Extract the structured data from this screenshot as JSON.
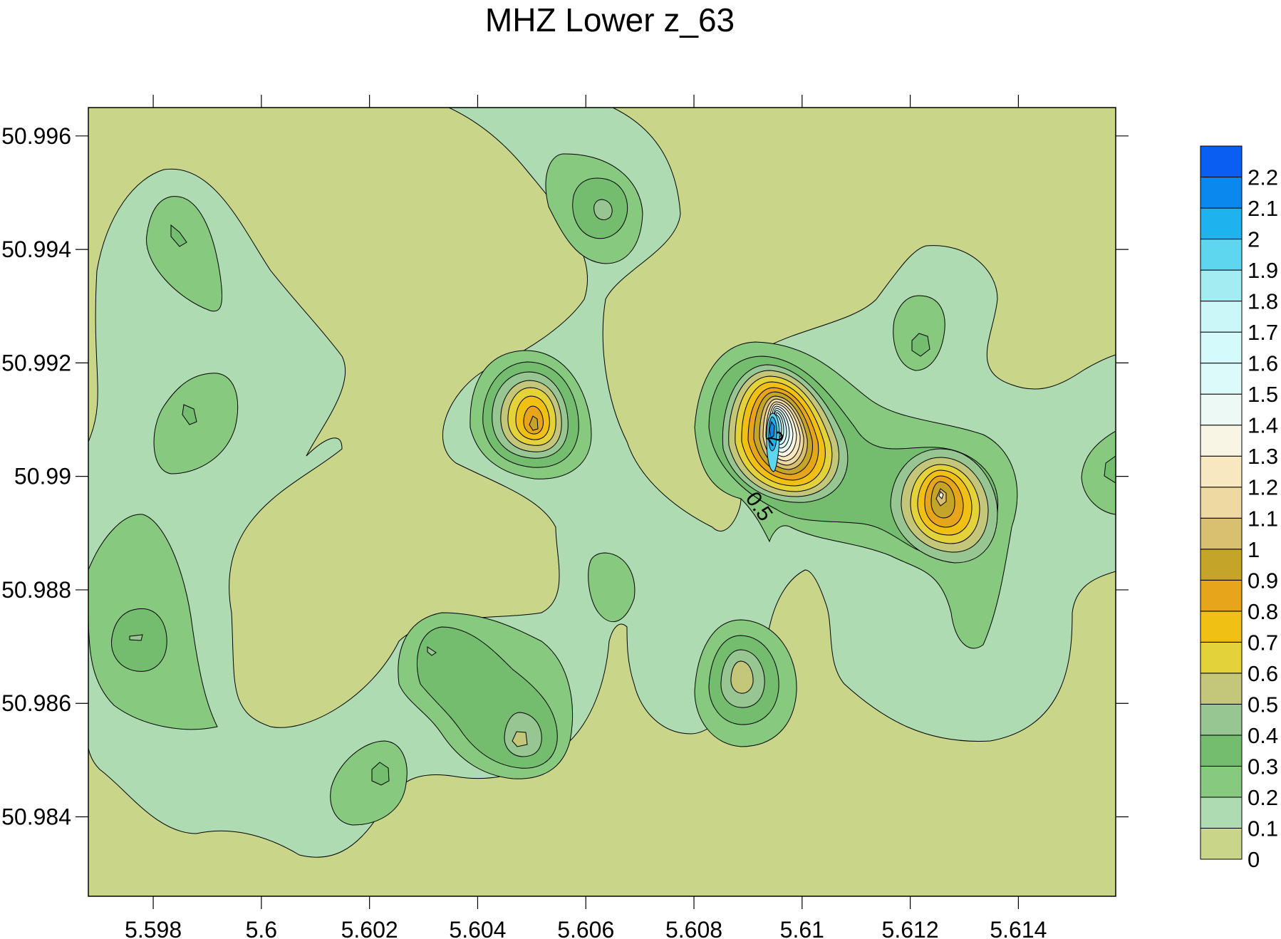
{
  "chart_data": {
    "type": "contour",
    "title": "MHZ Lower z_63",
    "xlabel": "",
    "ylabel": "",
    "xlim": [
      5.5968,
      5.6158
    ],
    "ylim": [
      50.9826,
      50.9965
    ],
    "x_ticks": [
      5.598,
      5.6,
      5.602,
      5.604,
      5.606,
      5.608,
      5.61,
      5.612,
      5.614
    ],
    "x_tick_labels": [
      "5.598",
      "5.6",
      "5.602",
      "5.604",
      "5.606",
      "5.608",
      "5.61",
      "5.612",
      "5.614"
    ],
    "y_ticks": [
      50.984,
      50.986,
      50.988,
      50.99,
      50.992,
      50.994,
      50.996
    ],
    "y_tick_labels": [
      "50.984",
      "50.986",
      "50.988",
      "50.99",
      "50.992",
      "50.994",
      "50.996"
    ],
    "colorbar": {
      "levels": [
        0,
        0.1,
        0.2,
        0.3,
        0.4,
        0.5,
        0.6,
        0.7,
        0.8,
        0.9,
        1,
        1.1,
        1.2,
        1.3,
        1.4,
        1.5,
        1.6,
        1.7,
        1.8,
        1.9,
        2,
        2.1,
        2.2
      ],
      "labels": [
        "0",
        "0.1",
        "0.2",
        "0.3",
        "0.4",
        "0.5",
        "0.6",
        "0.7",
        "0.8",
        "0.9",
        "1",
        "1.1",
        "1.2",
        "1.3",
        "1.4",
        "1.5",
        "1.6",
        "1.7",
        "1.8",
        "1.9",
        "2",
        "2.1",
        "2.2"
      ],
      "colors": [
        "#c9d68a",
        "#afdbb2",
        "#86c97f",
        "#74bd6e",
        "#97c693",
        "#c4c77a",
        "#e3d23a",
        "#f1c015",
        "#e6a51a",
        "#c4a528",
        "#d8c070",
        "#efd9a3",
        "#f8e8c0",
        "#f8f5e4",
        "#edf9f4",
        "#dcfaf8",
        "#d5fafb",
        "#cbf7f9",
        "#a3ecf2",
        "#5fd6f0",
        "#1eb3ee",
        "#0b88ee",
        "#0a5ff2"
      ]
    },
    "contour_labels": [
      {
        "text": "2",
        "x": 5.6094,
        "y": 50.9906
      },
      {
        "text": "0.5",
        "x": 5.6091,
        "y": 50.9894
      }
    ],
    "peaks": [
      {
        "x": 5.5985,
        "y": 50.9943,
        "value": 0.4
      },
      {
        "x": 5.5988,
        "y": 50.991,
        "value": 0.3
      },
      {
        "x": 5.5978,
        "y": 50.987,
        "value": 0.4
      },
      {
        "x": 5.6062,
        "y": 50.9947,
        "value": 0.4
      },
      {
        "x": 5.605,
        "y": 50.9909,
        "value": 0.85
      },
      {
        "x": 5.6095,
        "y": 50.9908,
        "value": 2.2
      },
      {
        "x": 5.6122,
        "y": 50.9922,
        "value": 0.35
      },
      {
        "x": 5.6126,
        "y": 50.9897,
        "value": 0.9
      },
      {
        "x": 5.6157,
        "y": 50.99,
        "value": 0.3
      },
      {
        "x": 5.6065,
        "y": 50.988,
        "value": 0.25
      },
      {
        "x": 5.609,
        "y": 50.9863,
        "value": 0.55
      },
      {
        "x": 5.6032,
        "y": 50.9868,
        "value": 0.35
      },
      {
        "x": 5.605,
        "y": 50.9852,
        "value": 0.55
      },
      {
        "x": 5.6022,
        "y": 50.9845,
        "value": 0.3
      }
    ]
  }
}
